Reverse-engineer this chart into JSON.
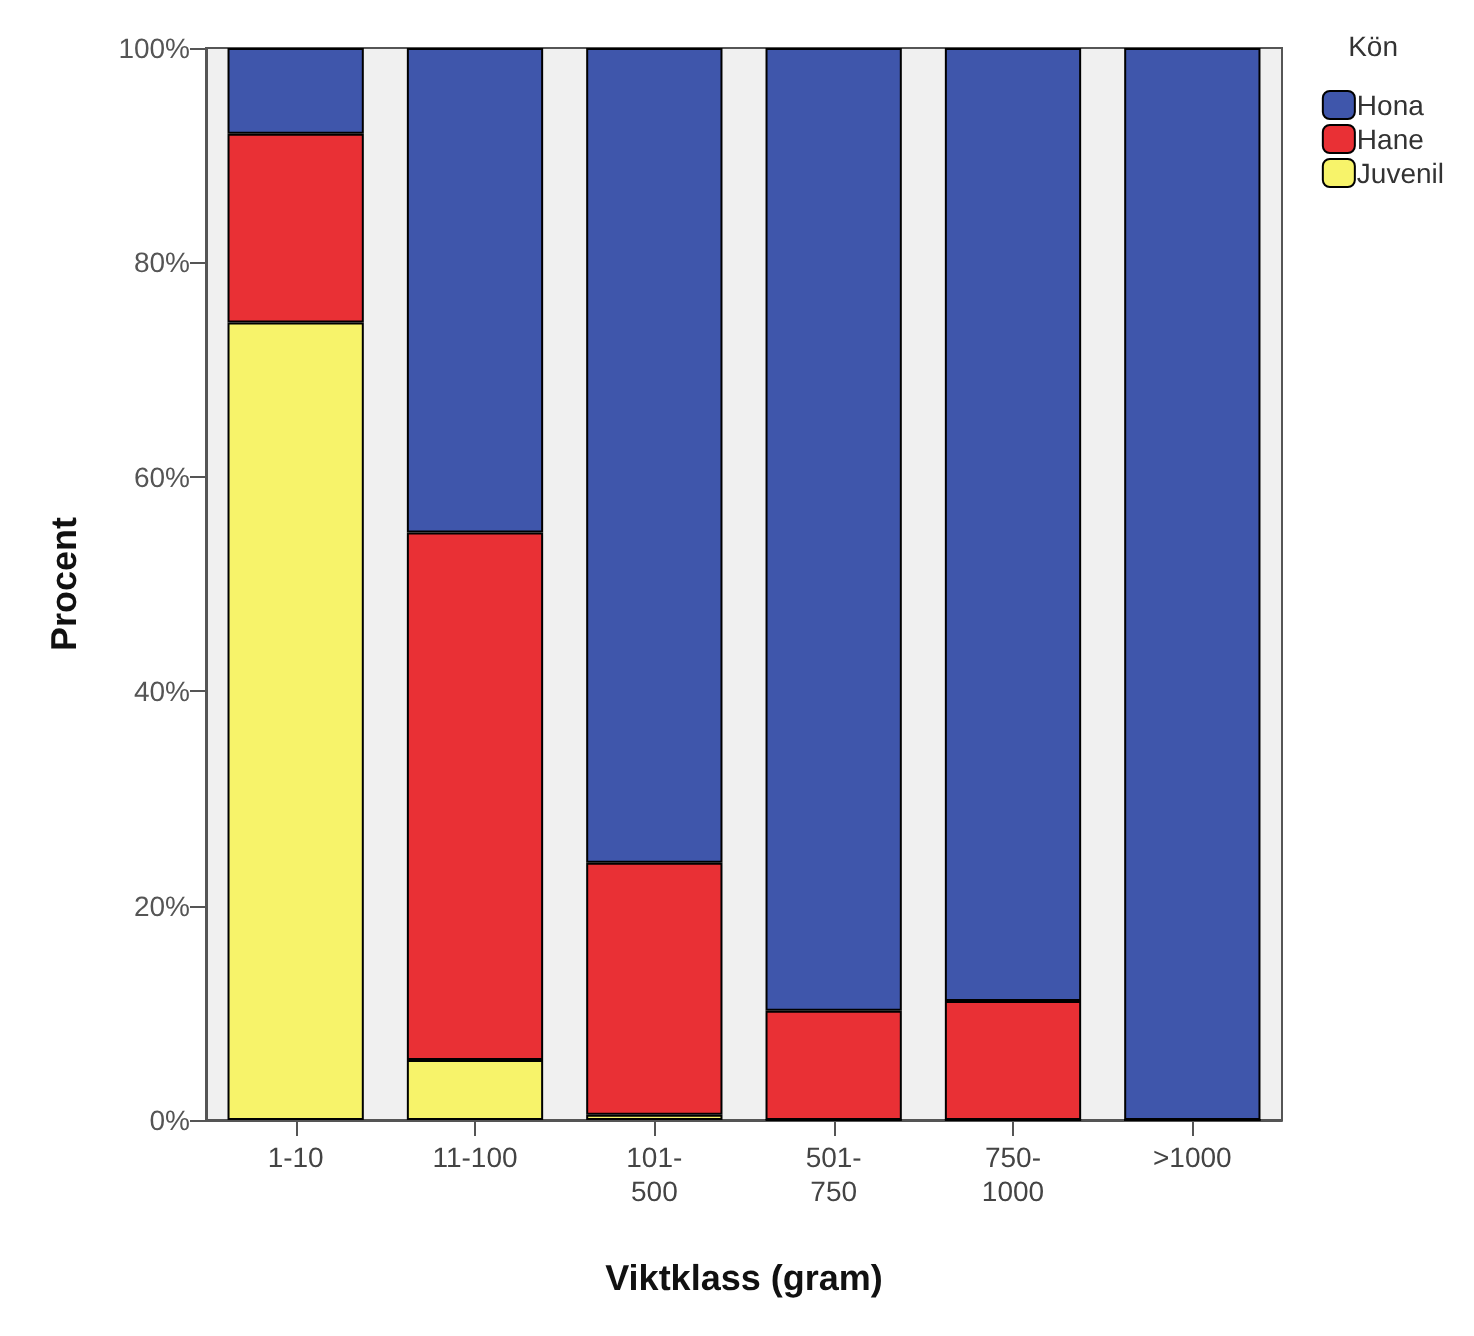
{
  "chart_data": {
    "type": "bar",
    "stacked": true,
    "xlabel": "Viktklass (gram)",
    "ylabel": "Procent",
    "legend_title": "Kön",
    "legend": "top right",
    "categories": [
      "1-10",
      "11-100",
      "101-\n500",
      "501-\n750",
      "750-\n1000",
      ">1000"
    ],
    "series": [
      {
        "name": "Juvenil",
        "color": "#f7f36a",
        "values": [
          74.4,
          5.6,
          0.5,
          0,
          0,
          0
        ]
      },
      {
        "name": "Hane",
        "color": "#e93035",
        "values": [
          17.6,
          49.2,
          23.5,
          10.2,
          11.1,
          0
        ]
      },
      {
        "name": "Hona",
        "color": "#3f56ab",
        "values": [
          8.0,
          45.2,
          76.0,
          89.8,
          88.9,
          100
        ]
      }
    ],
    "ylim": [
      0,
      100
    ],
    "yticks": [
      {
        "value": 0,
        "label": "0%"
      },
      {
        "value": 20,
        "label": "20%"
      },
      {
        "value": 40,
        "label": "40%"
      },
      {
        "value": 60,
        "label": "60%"
      },
      {
        "value": 80,
        "label": "80%"
      },
      {
        "value": 100,
        "label": "100%"
      }
    ],
    "grid": false
  }
}
